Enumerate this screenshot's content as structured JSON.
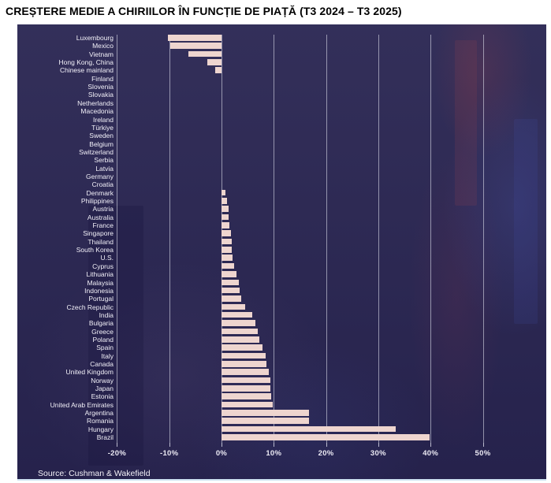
{
  "page": {
    "title": "CREȘTERE MEDIE A CHIRIILOR ÎN FUNCȚIE DE PIAȚĂ (T3 2024 – T3 2025)",
    "source": "Source: Cushman & Wakefield"
  },
  "chart_data": {
    "type": "bar",
    "orientation": "horizontal",
    "title": "CREȘTERE MEDIE A CHIRIILOR ÎN FUNCȚIE DE PIAȚĂ (T3 2024 – T3 2025)",
    "xlabel": "",
    "ylabel": "",
    "unit": "percent",
    "xlim": [
      -22,
      57
    ],
    "grid": true,
    "legend": false,
    "bar_color": "#eed5cf",
    "panel_background": "#2b2753",
    "gridline_color": "rgba(235,236,248,0.55)",
    "text_color": "#f2f0f8",
    "x_ticks": [
      {
        "value": -20,
        "label": "-20%"
      },
      {
        "value": -10,
        "label": "-10%"
      },
      {
        "value": 0,
        "label": "0%"
      },
      {
        "value": 10,
        "label": "10%"
      },
      {
        "value": 20,
        "label": "20%"
      },
      {
        "value": 30,
        "label": "30%"
      },
      {
        "value": 40,
        "label": "40%"
      },
      {
        "value": 50,
        "label": "50%"
      }
    ],
    "categories": [
      "Luxembourg",
      "Mexico",
      "Vietnam",
      "Hong Kong, China",
      "Chinese mainland",
      "Finland",
      "Slovenia",
      "Slovakia",
      "Netherlands",
      "Macedonia",
      "Ireland",
      "Türkiye",
      "Sweden",
      "Belgium",
      "Switzerland",
      "Serbia",
      "Latvia",
      "Germany",
      "Croatia",
      "Denmark",
      "Philippines",
      "Austria",
      "Australia",
      "France",
      "Singapore",
      "Thailand",
      "South Korea",
      "U.S.",
      "Cyprus",
      "Lithuania",
      "Malaysia",
      "Indonesia",
      "Portugal",
      "Czech Republic",
      "India",
      "Bulgaria",
      "Greece",
      "Poland",
      "Spain",
      "Italy",
      "Canada",
      "United Kingdom",
      "Norway",
      "Japan",
      "Estonia",
      "United Arab Emirates",
      "Argentina",
      "Romania",
      "Hungary",
      "Brazil"
    ],
    "values": [
      -10.2,
      -9.8,
      -6.4,
      -2.7,
      -1.2,
      0,
      0,
      0,
      0,
      0,
      0,
      0,
      0,
      0,
      0,
      0,
      0,
      0,
      0,
      0.8,
      1.1,
      1.3,
      1.4,
      1.5,
      1.8,
      2.0,
      2.0,
      2.1,
      2.4,
      2.8,
      3.3,
      3.4,
      3.7,
      4.5,
      5.9,
      6.5,
      7.0,
      7.3,
      7.9,
      8.5,
      8.6,
      9.0,
      9.3,
      9.4,
      9.5,
      9.8,
      16.8,
      16.8,
      33.4,
      39.8
    ]
  }
}
